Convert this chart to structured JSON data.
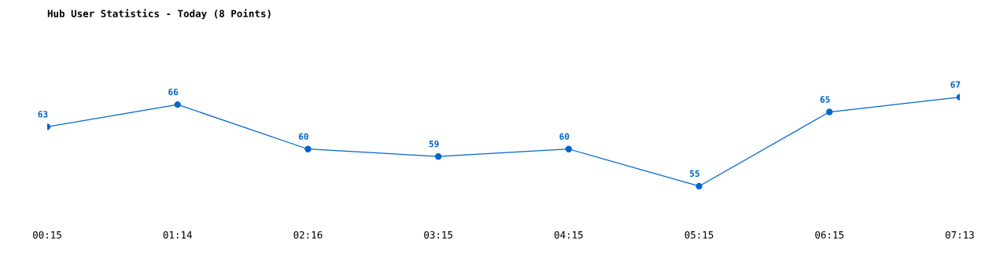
{
  "chart_data": {
    "type": "line",
    "title": "Hub User Statistics - Today (8 Points)",
    "categories": [
      "00:15",
      "01:14",
      "02:16",
      "03:15",
      "04:15",
      "05:15",
      "06:15",
      "07:13"
    ],
    "series": [
      {
        "color": "#0066cc",
        "values": [
          63,
          66,
          60,
          59,
          60,
          55,
          65,
          67
        ]
      }
    ],
    "marker": "circle",
    "line_style": "solid",
    "data_labels": true,
    "grid": false,
    "legend": false,
    "tick_labels": "x"
  }
}
